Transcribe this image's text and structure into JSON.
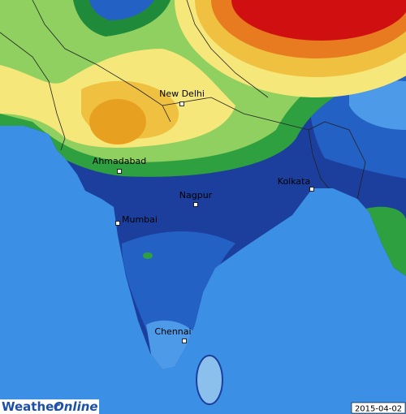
{
  "map": {
    "cities": [
      {
        "name": "New Delhi"
      },
      {
        "name": "Ahmadabad"
      },
      {
        "name": "Nagpur"
      },
      {
        "name": "Kolkata"
      },
      {
        "name": "Mumbai"
      },
      {
        "name": "Chennai"
      }
    ]
  },
  "logo": {
    "part1": "Weather",
    "part2": "Online"
  },
  "date": "2015-04-02"
}
